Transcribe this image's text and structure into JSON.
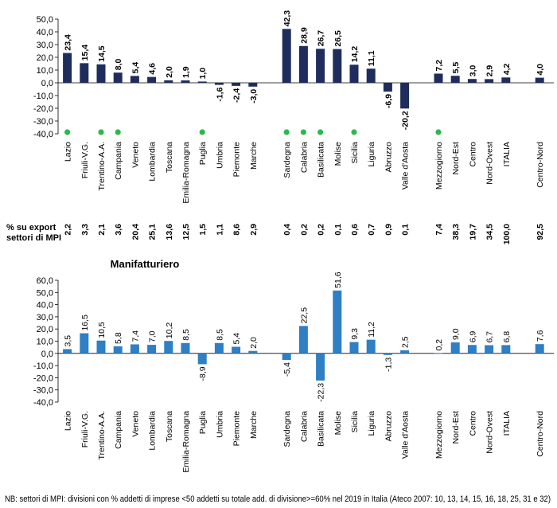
{
  "categories": [
    "Lazio",
    "Friuli-V.G.",
    "Trentino-A.A.",
    "Campania",
    "Veneto",
    "Lombardia",
    "Toscana",
    "Emilia-Romagna",
    "Puglia",
    "Umbria",
    "Piemonte",
    "Marche",
    "Sardegna",
    "Calabria",
    "Basilicata",
    "Molise",
    "Sicilia",
    "Liguria",
    "Abruzzo",
    "Valle d'Aosta",
    "Mezzogiorno",
    "Nord-Est",
    "Centro",
    "Nord-Ovest",
    "ITALIA",
    "Centro-Nord"
  ],
  "colors": {
    "top_bar": "#1f2d5c",
    "bottom_bar": "#2e7fc4",
    "marker": "#2db84d"
  },
  "chart_data": [
    {
      "type": "bar",
      "title": "",
      "ylim": [
        -40,
        50
      ],
      "yticks": [
        "50,0",
        "40,0",
        "30,0",
        "20,0",
        "10,0",
        "0,0",
        "-10,0",
        "-20,0",
        "-30,0",
        "-40,0"
      ],
      "values": [
        23.4,
        15.4,
        14.5,
        8.0,
        5.4,
        4.6,
        2.0,
        1.9,
        1.0,
        -1.6,
        -2.4,
        -3.0,
        42.3,
        28.9,
        26.7,
        26.5,
        14.2,
        11.1,
        -6.9,
        -20.2,
        7.2,
        5.5,
        3.0,
        2.9,
        4.2,
        4.0
      ],
      "value_labels": [
        "23,4",
        "15,4",
        "14,5",
        "8,0",
        "5,4",
        "4,6",
        "2,0",
        "1,9",
        "1,0",
        "-1,6",
        "-2,4",
        "-3,0",
        "42,3",
        "28,9",
        "26,7",
        "26,5",
        "14,2",
        "11,1",
        "-6,9",
        "-20,2",
        "7,2",
        "5,5",
        "3,0",
        "2,9",
        "4,2",
        "4,0"
      ],
      "markers": [
        true,
        false,
        true,
        true,
        false,
        false,
        false,
        false,
        true,
        false,
        false,
        false,
        true,
        true,
        true,
        false,
        true,
        false,
        false,
        false,
        true,
        false,
        false,
        false,
        false,
        false
      ],
      "share_label_line1": "% su export",
      "share_label_line2": "settori di MPI",
      "share_values": [
        "2,2",
        "3,3",
        "2,1",
        "3,6",
        "20,4",
        "25,1",
        "13,6",
        "12,5",
        "1,5",
        "1,1",
        "8,6",
        "2,9",
        "0,4",
        "0,2",
        "0,2",
        "0,1",
        "0,6",
        "0,7",
        "0,9",
        "0,1",
        "7,4",
        "38,3",
        "19,7",
        "34,5",
        "100,0",
        "92,5"
      ]
    },
    {
      "type": "bar",
      "title": "Manifatturiero",
      "ylim": [
        -40,
        60
      ],
      "yticks": [
        "60,0",
        "50,0",
        "40,0",
        "30,0",
        "20,0",
        "10,0",
        "0,0",
        "-10,0",
        "-20,0",
        "-30,0",
        "-40,0"
      ],
      "values": [
        3.5,
        16.5,
        10.5,
        5.8,
        7.4,
        7.0,
        10.2,
        8.5,
        -8.9,
        8.5,
        5.4,
        2.0,
        -5.4,
        22.5,
        -22.3,
        51.6,
        9.3,
        11.2,
        -1.3,
        2.5,
        0.2,
        9.0,
        6.9,
        6.7,
        6.8,
        7.6
      ],
      "value_labels": [
        "3,5",
        "16,5",
        "10,5",
        "5,8",
        "7,4",
        "7,0",
        "10,2",
        "8,5",
        "-8,9",
        "8,5",
        "5,4",
        "2,0",
        "-5,4",
        "22,5",
        "-22,3",
        "51,6",
        "9,3",
        "11,2",
        "-1,3",
        "2,5",
        "0,2",
        "9,0",
        "6,9",
        "6,7",
        "6,8",
        "7,6"
      ]
    }
  ],
  "footnote": "NB: settori di MPI: divisioni con % addetti di imprese <50 addetti su totale add. di divisione>=60% nel 2019 in Italia (Ateco 2007: 10, 13, 14, 15, 16, 18, 25, 31 e 32)"
}
